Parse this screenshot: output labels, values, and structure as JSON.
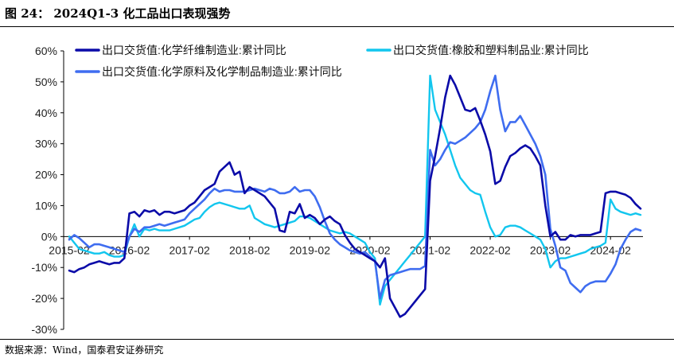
{
  "figure": {
    "title": "图 24： 2024Q1-3 化工品出口表现强势",
    "source": "数据来源：Wind，国泰君安证券研究"
  },
  "chart_data": {
    "type": "line",
    "ylim": [
      -30,
      60
    ],
    "yticks": [
      -30,
      -20,
      -10,
      0,
      10,
      20,
      30,
      40,
      50,
      60
    ],
    "ytick_labels": [
      "-30%",
      "-20%",
      "-10%",
      "0%",
      "10%",
      "20%",
      "30%",
      "40%",
      "50%",
      "60%"
    ],
    "xticks": [
      {
        "label": "2015-02",
        "index": 0
      },
      {
        "label": "2016-02",
        "index": 12
      },
      {
        "label": "2017-02",
        "index": 24
      },
      {
        "label": "2018-02",
        "index": 36
      },
      {
        "label": "2019-02",
        "index": 48
      },
      {
        "label": "2020-02",
        "index": 60
      },
      {
        "label": "2021-02",
        "index": 72
      },
      {
        "label": "2022-02",
        "index": 84
      },
      {
        "label": "2023-02",
        "index": 96
      },
      {
        "label": "2024-02",
        "index": 108
      }
    ],
    "x_start": "2015-02",
    "grid": false,
    "legend_position": "top",
    "series": [
      {
        "name": "出口交货值:化学纤维制造业:累计同比",
        "color": "#0b0ba8",
        "width": 2.6,
        "values": [
          -11.0,
          -11.5,
          -10.5,
          -10.0,
          -9.0,
          -8.5,
          -8.0,
          -8.5,
          -9.0,
          -8.5,
          -8.5,
          -7.0,
          7.5,
          8.0,
          6.5,
          8.5,
          8.0,
          8.5,
          7.0,
          8.0,
          8.0,
          7.5,
          8.0,
          8.5,
          10.0,
          11.0,
          13.0,
          15.0,
          16.0,
          17.0,
          21.0,
          22.5,
          24.0,
          20.0,
          21.0,
          14.0,
          16.0,
          15.0,
          14.0,
          13.0,
          11.0,
          9.0,
          2.0,
          1.5,
          8.0,
          7.5,
          10.5,
          6.0,
          7.0,
          6.0,
          4.0,
          5.5,
          6.5,
          5.0,
          4.0,
          0.5,
          -2.0,
          -4.0,
          -5.0,
          -6.0,
          -7.0,
          -8.0,
          -10.0,
          -7.0,
          -20.0,
          -23.0,
          -26.0,
          -25.0,
          -23.0,
          -21.0,
          -19.0,
          -17.0,
          18.0,
          26.0,
          35.0,
          45.0,
          52.0,
          49.0,
          45.0,
          41.0,
          40.5,
          41.5,
          37.5,
          33.0,
          27.5,
          17.0,
          18.0,
          22.5,
          26.0,
          27.0,
          28.5,
          29.5,
          28.5,
          26.0,
          23.0,
          10.0,
          0.0,
          1.5,
          -1.0,
          -1.0,
          0.5,
          0.0,
          0.5,
          0.5,
          0.5,
          1.0,
          1.5,
          14.0,
          14.5,
          14.5,
          14.0,
          13.5,
          12.5,
          10.5,
          9.0
        ]
      },
      {
        "name": "出口交货值:橡胶和塑料制品业:累计同比",
        "color": "#12c6ee",
        "width": 2.4,
        "values": [
          0.0,
          -2.0,
          -4.0,
          -4.5,
          -5.0,
          -5.5,
          -5.5,
          -5.0,
          -6.0,
          -6.5,
          -6.5,
          -6.0,
          0.0,
          4.0,
          0.0,
          2.5,
          2.0,
          2.5,
          2.0,
          2.0,
          2.0,
          2.5,
          3.0,
          3.5,
          4.5,
          5.5,
          6.0,
          8.0,
          9.5,
          10.5,
          11.0,
          10.5,
          10.0,
          9.5,
          9.0,
          9.0,
          10.0,
          6.0,
          5.0,
          4.0,
          3.5,
          3.0,
          3.5,
          4.0,
          4.5,
          5.0,
          6.5,
          6.5,
          6.0,
          5.0,
          4.0,
          3.0,
          2.0,
          1.5,
          1.0,
          1.5,
          1.0,
          0.0,
          -1.0,
          -2.0,
          -5.0,
          -7.0,
          -22.0,
          -16.0,
          -14.0,
          -12.0,
          -10.0,
          -8.0,
          -6.0,
          -4.0,
          -2.0,
          0.0,
          52.0,
          41.0,
          37.0,
          33.0,
          28.0,
          23.0,
          19.0,
          17.0,
          15.0,
          14.0,
          13.5,
          8.0,
          3.0,
          0.0,
          0.5,
          3.0,
          3.5,
          3.5,
          3.0,
          2.0,
          1.0,
          0.0,
          -1.0,
          -4.0,
          -10.0,
          -8.0,
          -7.0,
          -7.0,
          -6.5,
          -6.0,
          -5.5,
          -5.0,
          -4.0,
          -3.5,
          -3.0,
          -2.0,
          12.0,
          9.0,
          8.0,
          7.5,
          7.0,
          7.5,
          7.0
        ]
      },
      {
        "name": "出口交货值:化学原料及化学制品制造业:累计同比",
        "color": "#3f6df0",
        "width": 2.6,
        "values": [
          -1.0,
          0.5,
          -0.5,
          -2.0,
          -3.5,
          -2.5,
          -2.5,
          -3.0,
          -3.5,
          -4.0,
          -4.5,
          -5.0,
          0.0,
          2.5,
          1.5,
          3.0,
          3.0,
          3.5,
          4.0,
          3.5,
          4.0,
          4.5,
          5.0,
          5.5,
          7.5,
          9.0,
          10.5,
          12.0,
          14.0,
          15.5,
          14.5,
          15.0,
          15.0,
          14.5,
          14.5,
          14.5,
          15.0,
          15.5,
          15.0,
          14.5,
          15.5,
          15.0,
          14.0,
          14.0,
          14.5,
          16.0,
          14.5,
          15.0,
          15.0,
          13.0,
          9.5,
          5.0,
          1.0,
          -1.0,
          -2.5,
          -3.5,
          -4.5,
          -5.0,
          -5.5,
          -5.0,
          -6.5,
          -8.0,
          -20.0,
          -14.0,
          -12.5,
          -12.0,
          -11.5,
          -11.0,
          -10.5,
          -10.5,
          -10.5,
          -9.5,
          28.0,
          23.0,
          25.0,
          28.0,
          30.5,
          30.0,
          31.0,
          32.0,
          33.5,
          35.0,
          37.0,
          41.0,
          47.0,
          52.0,
          41.0,
          34.0,
          37.0,
          37.0,
          39.0,
          36.0,
          33.0,
          30.0,
          26.0,
          20.0,
          2.5,
          -3.0,
          -10.0,
          -11.0,
          -15.0,
          -16.5,
          -18.0,
          -16.0,
          -15.0,
          -14.5,
          -14.5,
          -14.5,
          -12.0,
          -9.0,
          -4.0,
          -1.0,
          1.5,
          2.5,
          2.0
        ]
      }
    ]
  }
}
